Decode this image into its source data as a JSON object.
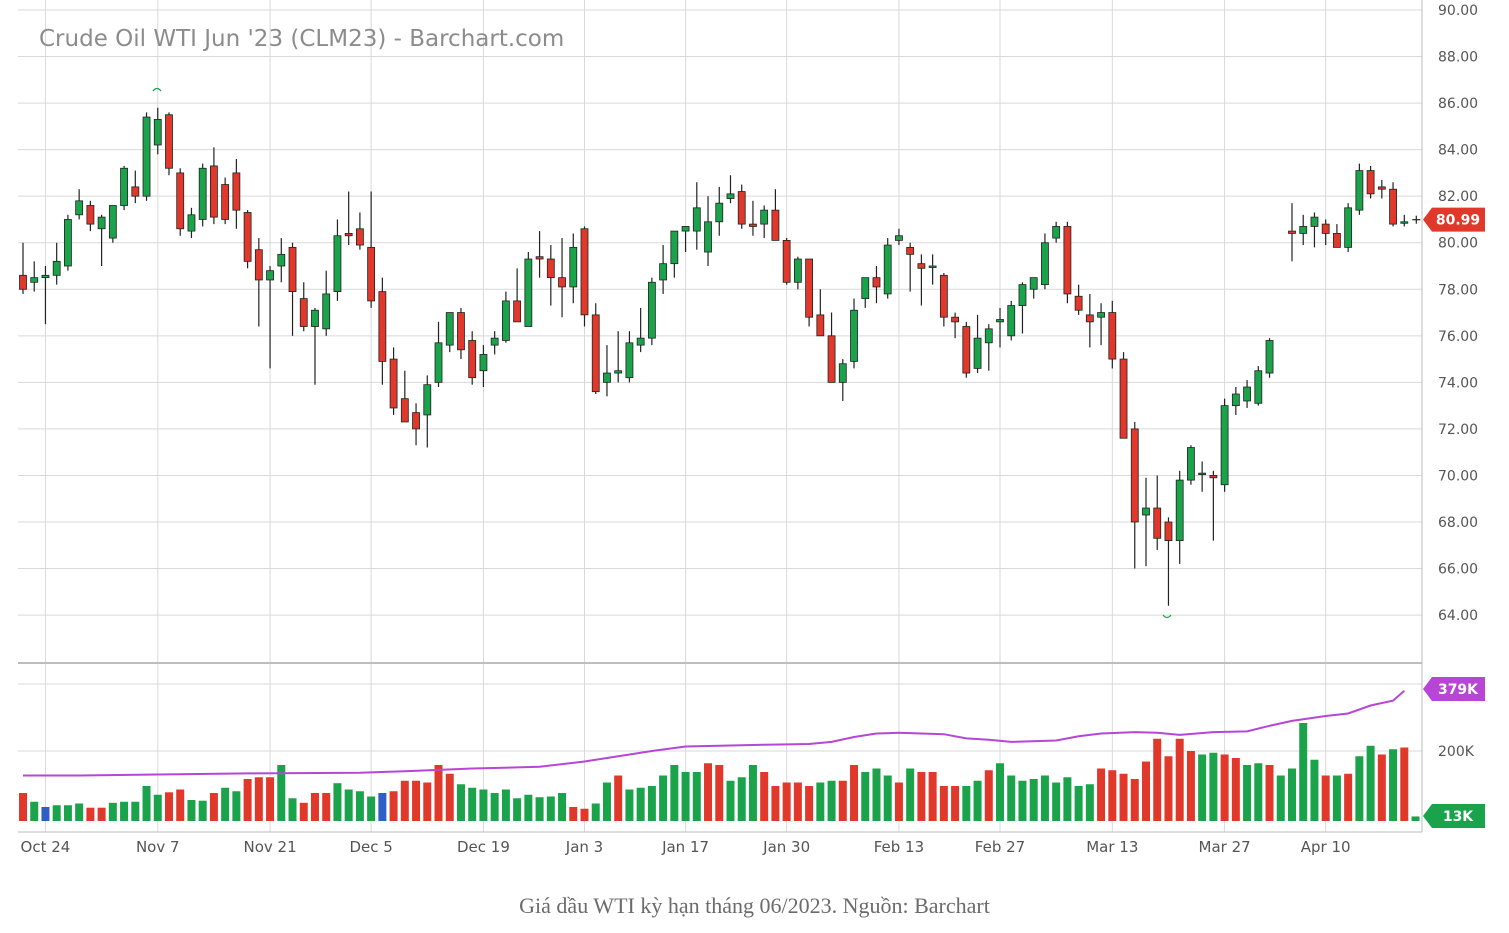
{
  "chart_data": {
    "type": "candlestick",
    "title": "Crude Oil WTI Jun '23 (CLM23) - Barchart.com",
    "price_axis": {
      "ylim": [
        62.5,
        90
      ],
      "ticks": [
        "90.00",
        "88.00",
        "86.00",
        "84.00",
        "82.00",
        "80.00",
        "78.00",
        "76.00",
        "74.00",
        "72.00",
        "70.00",
        "68.00",
        "66.00",
        "64.00"
      ],
      "side": "right"
    },
    "volume_axis": {
      "max": 379000,
      "ticks": [
        "200K"
      ],
      "side": "right"
    },
    "x_ticks": [
      {
        "label": "Oct 24",
        "index": 2
      },
      {
        "label": "Nov 7",
        "index": 12
      },
      {
        "label": "Nov 21",
        "index": 22
      },
      {
        "label": "Dec 5",
        "index": 31
      },
      {
        "label": "Dec 19",
        "index": 41
      },
      {
        "label": "Jan 3",
        "index": 50
      },
      {
        "label": "Jan 17",
        "index": 59
      },
      {
        "label": "Jan 30",
        "index": 68
      },
      {
        "label": "Feb 13",
        "index": 78
      },
      {
        "label": "Feb 27",
        "index": 87
      },
      {
        "label": "Mar 13",
        "index": 97
      },
      {
        "label": "Mar 27",
        "index": 107
      },
      {
        "label": "Apr 10",
        "index": 116
      }
    ],
    "ohlc": [
      [
        78.6,
        80.0,
        77.8,
        78.0
      ],
      [
        78.3,
        79.2,
        77.9,
        78.5
      ],
      [
        78.5,
        79.0,
        76.5,
        78.6
      ],
      [
        78.6,
        80.0,
        78.2,
        79.2
      ],
      [
        79.0,
        81.2,
        78.8,
        81.0
      ],
      [
        81.2,
        82.3,
        81.0,
        81.8
      ],
      [
        81.6,
        81.8,
        80.5,
        80.8
      ],
      [
        80.6,
        81.2,
        79.0,
        81.1
      ],
      [
        80.2,
        81.5,
        80.0,
        81.6
      ],
      [
        81.6,
        83.3,
        81.4,
        83.2
      ],
      [
        82.4,
        83.1,
        81.7,
        82.0
      ],
      [
        82.0,
        85.6,
        81.8,
        85.4
      ],
      [
        84.2,
        85.8,
        83.8,
        85.3
      ],
      [
        85.5,
        85.6,
        82.9,
        83.2
      ],
      [
        83.0,
        83.2,
        80.3,
        80.6
      ],
      [
        80.5,
        81.5,
        80.2,
        81.2
      ],
      [
        81.0,
        83.4,
        80.7,
        83.2
      ],
      [
        83.3,
        84.1,
        80.8,
        81.1
      ],
      [
        82.5,
        82.8,
        80.8,
        81.0
      ],
      [
        83.0,
        83.6,
        80.6,
        81.4
      ],
      [
        81.3,
        81.4,
        78.9,
        79.2
      ],
      [
        79.7,
        80.2,
        76.4,
        78.4
      ],
      [
        78.4,
        79.0,
        74.6,
        78.8
      ],
      [
        79.0,
        80.2,
        78.3,
        79.5
      ],
      [
        79.8,
        80.0,
        76.0,
        77.9
      ],
      [
        77.6,
        78.3,
        76.2,
        76.4
      ],
      [
        76.4,
        77.2,
        73.9,
        77.1
      ],
      [
        76.3,
        78.8,
        76.0,
        77.8
      ],
      [
        77.9,
        81.0,
        77.5,
        80.3
      ],
      [
        80.4,
        82.2,
        79.9,
        80.3
      ],
      [
        80.6,
        81.3,
        79.7,
        79.9
      ],
      [
        79.8,
        82.2,
        77.2,
        77.5
      ],
      [
        77.9,
        78.5,
        73.9,
        74.9
      ],
      [
        75.0,
        75.5,
        72.6,
        72.9
      ],
      [
        73.3,
        74.5,
        72.3,
        72.3
      ],
      [
        72.7,
        73.1,
        71.3,
        72.0
      ],
      [
        72.6,
        74.3,
        71.2,
        73.9
      ],
      [
        74.0,
        76.6,
        73.8,
        75.7
      ],
      [
        75.6,
        77.0,
        75.3,
        77.0
      ],
      [
        77.0,
        77.2,
        75.0,
        75.4
      ],
      [
        75.8,
        76.2,
        73.9,
        74.2
      ],
      [
        74.5,
        75.6,
        73.8,
        75.2
      ],
      [
        75.6,
        76.2,
        75.2,
        75.9
      ],
      [
        75.8,
        77.9,
        75.7,
        77.5
      ],
      [
        77.5,
        78.9,
        76.6,
        76.6
      ],
      [
        76.4,
        79.6,
        76.4,
        79.3
      ],
      [
        79.4,
        80.5,
        78.5,
        79.3
      ],
      [
        79.3,
        79.9,
        77.3,
        78.5
      ],
      [
        78.5,
        80.2,
        76.8,
        78.1
      ],
      [
        78.1,
        80.4,
        77.4,
        79.8
      ],
      [
        80.6,
        80.7,
        76.4,
        76.9
      ],
      [
        76.9,
        77.4,
        73.5,
        73.6
      ],
      [
        74.0,
        75.6,
        73.4,
        74.4
      ],
      [
        74.4,
        76.2,
        74.0,
        74.5
      ],
      [
        74.2,
        76.2,
        74.0,
        75.7
      ],
      [
        75.6,
        77.2,
        75.3,
        75.9
      ],
      [
        75.9,
        78.5,
        75.6,
        78.3
      ],
      [
        78.4,
        79.9,
        77.8,
        79.1
      ],
      [
        79.1,
        80.5,
        78.5,
        80.5
      ],
      [
        80.5,
        80.7,
        79.6,
        80.7
      ],
      [
        80.5,
        82.6,
        79.7,
        81.5
      ],
      [
        79.6,
        82.0,
        79.0,
        80.9
      ],
      [
        80.9,
        82.4,
        80.3,
        81.7
      ],
      [
        81.9,
        82.9,
        81.7,
        82.1
      ],
      [
        82.2,
        82.5,
        80.6,
        80.8
      ],
      [
        80.8,
        81.8,
        80.3,
        80.7
      ],
      [
        80.8,
        81.6,
        80.2,
        81.4
      ],
      [
        81.4,
        82.3,
        80.1,
        80.1
      ],
      [
        80.1,
        80.2,
        78.2,
        78.3
      ],
      [
        78.3,
        79.4,
        78.0,
        79.3
      ],
      [
        79.3,
        79.3,
        76.4,
        76.8
      ],
      [
        76.9,
        78.0,
        76.2,
        76.0
      ],
      [
        76.0,
        77.0,
        74.0,
        74.0
      ],
      [
        74.0,
        75.0,
        73.2,
        74.8
      ],
      [
        74.9,
        77.6,
        74.6,
        77.1
      ],
      [
        77.6,
        78.4,
        77.2,
        78.5
      ],
      [
        78.5,
        79.0,
        77.4,
        78.1
      ],
      [
        77.8,
        80.2,
        77.6,
        79.9
      ],
      [
        80.1,
        80.6,
        79.9,
        80.3
      ],
      [
        79.8,
        80.0,
        77.9,
        79.5
      ],
      [
        79.1,
        79.5,
        77.3,
        78.9
      ],
      [
        79.0,
        79.5,
        78.2,
        79.0
      ],
      [
        78.6,
        78.7,
        76.4,
        76.8
      ],
      [
        76.8,
        77.0,
        75.9,
        76.6
      ],
      [
        76.4,
        76.6,
        74.2,
        74.4
      ],
      [
        74.6,
        76.9,
        74.4,
        75.9
      ],
      [
        75.7,
        76.5,
        74.5,
        76.3
      ],
      [
        76.6,
        77.2,
        75.5,
        76.7
      ],
      [
        76.0,
        77.5,
        75.8,
        77.3
      ],
      [
        77.3,
        78.3,
        76.1,
        78.2
      ],
      [
        78.0,
        78.5,
        77.6,
        78.5
      ],
      [
        78.2,
        80.4,
        78.0,
        80.0
      ],
      [
        80.2,
        80.9,
        80.0,
        80.7
      ],
      [
        80.7,
        80.9,
        77.4,
        77.8
      ],
      [
        77.7,
        78.2,
        76.9,
        77.1
      ],
      [
        76.9,
        77.8,
        75.5,
        76.6
      ],
      [
        76.8,
        77.4,
        75.6,
        77.0
      ],
      [
        77.0,
        77.5,
        74.6,
        75.0
      ],
      [
        75.0,
        75.3,
        71.8,
        71.6
      ],
      [
        72.0,
        72.3,
        66.0,
        68.0
      ],
      [
        68.3,
        69.9,
        66.1,
        68.6
      ],
      [
        68.6,
        70.0,
        66.8,
        67.3
      ],
      [
        68.0,
        68.2,
        64.4,
        67.2
      ],
      [
        67.2,
        70.2,
        66.2,
        69.8
      ],
      [
        69.8,
        71.3,
        69.6,
        71.2
      ],
      [
        70.1,
        70.6,
        69.3,
        70.1
      ],
      [
        70.0,
        70.2,
        67.2,
        69.9
      ],
      [
        69.6,
        73.3,
        69.3,
        73.0
      ],
      [
        73.0,
        73.8,
        72.6,
        73.5
      ],
      [
        73.2,
        74.1,
        72.9,
        73.8
      ],
      [
        73.1,
        74.7,
        73.0,
        74.5
      ],
      [
        74.4,
        75.9,
        74.2,
        75.8
      ],
      null,
      [
        80.5,
        81.7,
        79.2,
        80.4
      ],
      [
        80.4,
        81.2,
        79.9,
        80.7
      ],
      [
        80.7,
        81.3,
        79.8,
        81.1
      ],
      [
        80.8,
        81.0,
        79.9,
        80.4
      ],
      [
        80.4,
        80.8,
        79.8,
        79.8
      ],
      [
        79.8,
        81.7,
        79.6,
        81.5
      ],
      [
        81.4,
        83.4,
        81.2,
        83.1
      ],
      [
        83.1,
        83.3,
        81.9,
        82.1
      ],
      [
        82.4,
        82.7,
        81.9,
        82.3
      ],
      [
        82.3,
        82.6,
        80.7,
        80.8
      ],
      [
        80.9,
        81.2,
        80.7,
        80.9
      ]
    ],
    "volume": [
      {
        "k": 80,
        "c": "r"
      },
      {
        "k": 55,
        "c": "g"
      },
      {
        "k": 40,
        "c": "b"
      },
      {
        "k": 45,
        "c": "g"
      },
      {
        "k": 45,
        "c": "g"
      },
      {
        "k": 50,
        "c": "g"
      },
      {
        "k": 38,
        "c": "r"
      },
      {
        "k": 38,
        "c": "r"
      },
      {
        "k": 52,
        "c": "g"
      },
      {
        "k": 55,
        "c": "g"
      },
      {
        "k": 55,
        "c": "g"
      },
      {
        "k": 100,
        "c": "g"
      },
      {
        "k": 75,
        "c": "g"
      },
      {
        "k": 82,
        "c": "r"
      },
      {
        "k": 90,
        "c": "r"
      },
      {
        "k": 60,
        "c": "g"
      },
      {
        "k": 58,
        "c": "g"
      },
      {
        "k": 80,
        "c": "r"
      },
      {
        "k": 95,
        "c": "g"
      },
      {
        "k": 85,
        "c": "g"
      },
      {
        "k": 120,
        "c": "r"
      },
      {
        "k": 125,
        "c": "r"
      },
      {
        "k": 125,
        "c": "r"
      },
      {
        "k": 160,
        "c": "g"
      },
      {
        "k": 65,
        "c": "g"
      },
      {
        "k": 52,
        "c": "r"
      },
      {
        "k": 80,
        "c": "r"
      },
      {
        "k": 80,
        "c": "r"
      },
      {
        "k": 108,
        "c": "g"
      },
      {
        "k": 90,
        "c": "g"
      },
      {
        "k": 85,
        "c": "g"
      },
      {
        "k": 70,
        "c": "g"
      },
      {
        "k": 80,
        "c": "b"
      },
      {
        "k": 85,
        "c": "r"
      },
      {
        "k": 115,
        "c": "r"
      },
      {
        "k": 115,
        "c": "r"
      },
      {
        "k": 110,
        "c": "r"
      },
      {
        "k": 160,
        "c": "r"
      },
      {
        "k": 135,
        "c": "r"
      },
      {
        "k": 105,
        "c": "g"
      },
      {
        "k": 95,
        "c": "g"
      },
      {
        "k": 90,
        "c": "g"
      },
      {
        "k": 80,
        "c": "g"
      },
      {
        "k": 90,
        "c": "g"
      },
      {
        "k": 65,
        "c": "g"
      },
      {
        "k": 75,
        "c": "g"
      },
      {
        "k": 68,
        "c": "g"
      },
      {
        "k": 70,
        "c": "g"
      },
      {
        "k": 80,
        "c": "g"
      },
      {
        "k": 40,
        "c": "r"
      },
      {
        "k": 35,
        "c": "r"
      },
      {
        "k": 50,
        "c": "g"
      },
      {
        "k": 110,
        "c": "g"
      },
      {
        "k": 130,
        "c": "r"
      },
      {
        "k": 90,
        "c": "g"
      },
      {
        "k": 95,
        "c": "g"
      },
      {
        "k": 100,
        "c": "g"
      },
      {
        "k": 130,
        "c": "g"
      },
      {
        "k": 160,
        "c": "g"
      },
      {
        "k": 140,
        "c": "g"
      },
      {
        "k": 140,
        "c": "g"
      },
      {
        "k": 165,
        "c": "r"
      },
      {
        "k": 160,
        "c": "r"
      },
      {
        "k": 115,
        "c": "g"
      },
      {
        "k": 125,
        "c": "g"
      },
      {
        "k": 160,
        "c": "g"
      },
      {
        "k": 140,
        "c": "r"
      },
      {
        "k": 100,
        "c": "r"
      },
      {
        "k": 110,
        "c": "r"
      },
      {
        "k": 110,
        "c": "r"
      },
      {
        "k": 100,
        "c": "r"
      },
      {
        "k": 110,
        "c": "g"
      },
      {
        "k": 115,
        "c": "g"
      },
      {
        "k": 115,
        "c": "r"
      },
      {
        "k": 160,
        "c": "r"
      },
      {
        "k": 140,
        "c": "g"
      },
      {
        "k": 150,
        "c": "g"
      },
      {
        "k": 130,
        "c": "g"
      },
      {
        "k": 110,
        "c": "r"
      },
      {
        "k": 150,
        "c": "g"
      },
      {
        "k": 140,
        "c": "r"
      },
      {
        "k": 140,
        "c": "r"
      },
      {
        "k": 100,
        "c": "r"
      },
      {
        "k": 100,
        "c": "r"
      },
      {
        "k": 100,
        "c": "g"
      },
      {
        "k": 115,
        "c": "g"
      },
      {
        "k": 145,
        "c": "r"
      },
      {
        "k": 165,
        "c": "g"
      },
      {
        "k": 130,
        "c": "g"
      },
      {
        "k": 115,
        "c": "g"
      },
      {
        "k": 120,
        "c": "g"
      },
      {
        "k": 130,
        "c": "g"
      },
      {
        "k": 110,
        "c": "g"
      },
      {
        "k": 125,
        "c": "g"
      },
      {
        "k": 100,
        "c": "g"
      },
      {
        "k": 105,
        "c": "g"
      },
      {
        "k": 150,
        "c": "r"
      },
      {
        "k": 145,
        "c": "r"
      },
      {
        "k": 135,
        "c": "r"
      },
      {
        "k": 120,
        "c": "r"
      },
      {
        "k": 170,
        "c": "r"
      },
      {
        "k": 235,
        "c": "r"
      },
      {
        "k": 185,
        "c": "r"
      },
      {
        "k": 235,
        "c": "r"
      },
      {
        "k": 200,
        "c": "r"
      },
      {
        "k": 190,
        "c": "g"
      },
      {
        "k": 195,
        "c": "g"
      },
      {
        "k": 190,
        "c": "r"
      },
      {
        "k": 180,
        "c": "r"
      },
      {
        "k": 160,
        "c": "g"
      },
      {
        "k": 165,
        "c": "g"
      },
      {
        "k": 160,
        "c": "r"
      },
      {
        "k": 130,
        "c": "g"
      },
      {
        "k": 150,
        "c": "g"
      },
      {
        "k": 280,
        "c": "g"
      },
      {
        "k": 175,
        "c": "g"
      },
      {
        "k": 130,
        "c": "r"
      },
      {
        "k": 130,
        "c": "g"
      },
      {
        "k": 135,
        "c": "r"
      },
      {
        "k": 185,
        "c": "g"
      },
      {
        "k": 215,
        "c": "g"
      },
      {
        "k": 190,
        "c": "r"
      },
      {
        "k": 205,
        "c": "g"
      },
      {
        "k": 210,
        "c": "r"
      },
      {
        "k": 13,
        "c": "g"
      }
    ],
    "volume_ma": [
      {
        "i": 0,
        "k": 130
      },
      {
        "i": 5,
        "k": 130
      },
      {
        "i": 12,
        "k": 133
      },
      {
        "i": 20,
        "k": 136
      },
      {
        "i": 30,
        "k": 138
      },
      {
        "i": 34,
        "k": 142
      },
      {
        "i": 40,
        "k": 150
      },
      {
        "i": 46,
        "k": 155
      },
      {
        "i": 50,
        "k": 170
      },
      {
        "i": 53,
        "k": 185
      },
      {
        "i": 56,
        "k": 200
      },
      {
        "i": 59,
        "k": 213
      },
      {
        "i": 62,
        "k": 215
      },
      {
        "i": 66,
        "k": 218
      },
      {
        "i": 70,
        "k": 220
      },
      {
        "i": 72,
        "k": 226
      },
      {
        "i": 74,
        "k": 240
      },
      {
        "i": 76,
        "k": 250
      },
      {
        "i": 78,
        "k": 252
      },
      {
        "i": 82,
        "k": 248
      },
      {
        "i": 84,
        "k": 236
      },
      {
        "i": 86,
        "k": 232
      },
      {
        "i": 88,
        "k": 226
      },
      {
        "i": 92,
        "k": 230
      },
      {
        "i": 94,
        "k": 242
      },
      {
        "i": 96,
        "k": 250
      },
      {
        "i": 99,
        "k": 254
      },
      {
        "i": 101,
        "k": 252
      },
      {
        "i": 103,
        "k": 246
      },
      {
        "i": 106,
        "k": 254
      },
      {
        "i": 109,
        "k": 256
      },
      {
        "i": 111,
        "k": 272
      },
      {
        "i": 113,
        "k": 286
      },
      {
        "i": 116,
        "k": 300
      },
      {
        "i": 118,
        "k": 307
      },
      {
        "i": 120,
        "k": 330
      },
      {
        "i": 122,
        "k": 344
      },
      {
        "i": 123,
        "k": 372
      }
    ],
    "last_price": "80.99",
    "volume_ma_last": "379K",
    "volume_last": "13K",
    "colors": {
      "up": "#1aa34a",
      "down": "#e0382a",
      "special": "#2f5ec4",
      "volume_ma": "#b746d6",
      "grid": "#d9d9d9",
      "price_badge": "#e0382a",
      "volume_ma_badge": "#b746d6",
      "volume_badge": "#1aa34a"
    }
  },
  "caption": "Giá dầu WTI kỳ hạn tháng 06/2023. Nguồn: Barchart"
}
